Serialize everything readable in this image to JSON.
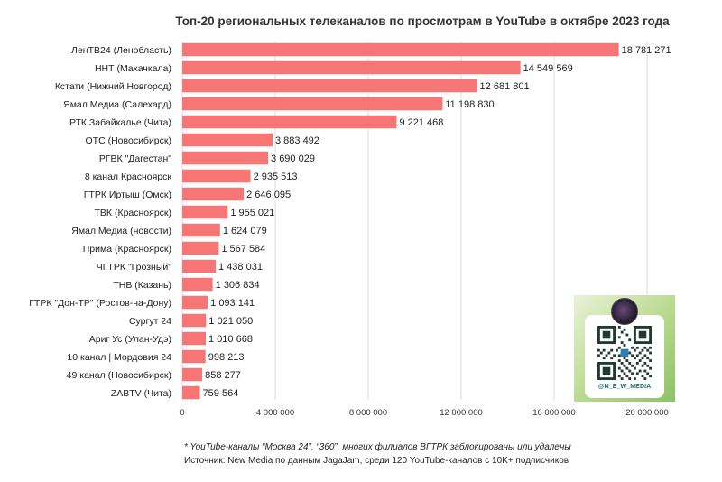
{
  "chart_data": {
    "type": "bar",
    "orientation": "horizontal",
    "title": "Топ-20 региональных телеканалов по просмотрам в YouTube в октябре 2023 года",
    "categories": [
      "ЛенТВ24 (Ленобласть)",
      "ННТ (Махачкала)",
      "Кстати (Нижний Новгород)",
      "Ямал Медиа (Салехард)",
      "РТК Забайкалье (Чита)",
      "ОТС (Новосибирск)",
      "РГВК \"Дагестан\"",
      "8 канал Красноярск",
      "ГТРК Иртыш (Омск)",
      "ТВК (Красноярск)",
      "Ямал Медиа (новости)",
      "Прима (Красноярск)",
      "ЧГТРК \"Грозный\"",
      "ТНВ (Казань)",
      "ГТРК \"Дон-ТР\" (Ростов-на-Дону)",
      "Сургут 24",
      "Ариг Ус (Улан-Удэ)",
      "10 канал | Мордовия 24",
      "49 канал (Новосибирск)",
      "ZABTV (Чита)"
    ],
    "values": [
      18781271,
      14549569,
      12681801,
      11198830,
      9221468,
      3883492,
      3690029,
      2935513,
      2646095,
      1955021,
      1624079,
      1567584,
      1438031,
      1306834,
      1093141,
      1021050,
      1010668,
      998213,
      858277,
      759564
    ],
    "value_labels": [
      "18 781 271",
      "14 549 569",
      "12 681 801",
      "11 198 830",
      "9 221 468",
      "3 883 492",
      "3 690 029",
      "2 935 513",
      "2 646 095",
      "1 955 021",
      "1 624 079",
      "1 567 584",
      "1 438 031",
      "1 306 834",
      "1 093 141",
      "1 021 050",
      "1 010 668",
      "998 213",
      "858 277",
      "759 564"
    ],
    "xlim": [
      0,
      20000000
    ],
    "xticks": [
      0,
      4000000,
      8000000,
      12000000,
      16000000,
      20000000
    ],
    "xtick_labels": [
      "0",
      "4 000 000",
      "8 000 000",
      "12 000 000",
      "16 000 000",
      "20 000 000"
    ],
    "grid": "vertical",
    "bar_color": "#f67676"
  },
  "qr_card": {
    "handle": "@N_E_W_MEDIA",
    "icon": "qr-code-icon"
  },
  "footnote": "* YouTube-каналы “Москва 24”, “360”, многих филиалов ВГТРК заблокированы или удалены",
  "source": "Источник: New Media по данным JagaJam, среди 120 YouTube-каналов с 10K+ подписчиков"
}
